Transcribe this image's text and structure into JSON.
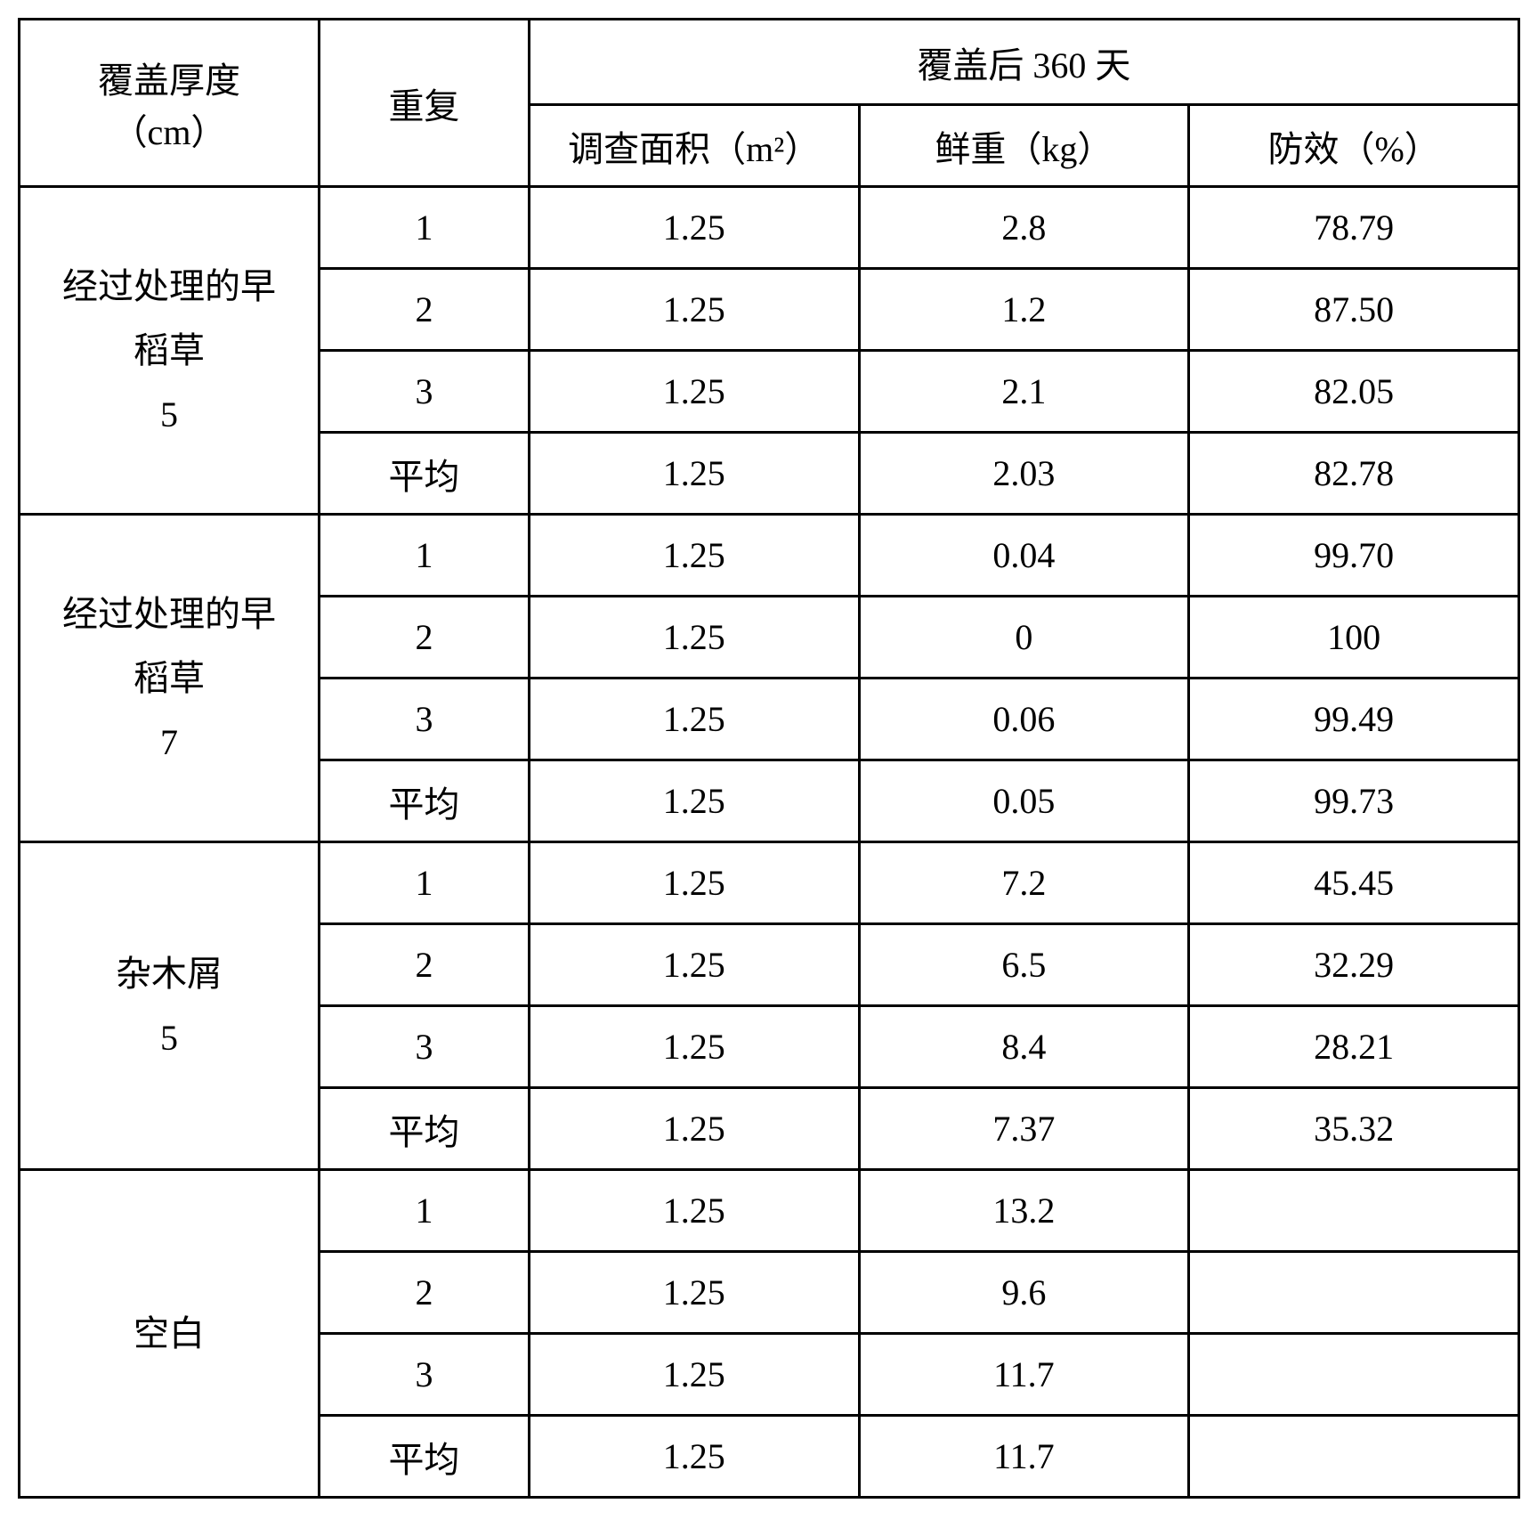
{
  "table": {
    "type": "table",
    "background_color": "#ffffff",
    "border_color": "#000000",
    "border_width": 3,
    "text_color": "#000000",
    "font_family": "SimSun",
    "font_size_pt": 30,
    "columns": {
      "thickness": {
        "line1": "覆盖厚度",
        "line2": "（cm）"
      },
      "repeat": "重复",
      "after_group": "覆盖后 360 天",
      "area": "调查面积（m²）",
      "weight": "鲜重（kg）",
      "effect": "防效（%）"
    },
    "groups": [
      {
        "label_lines": [
          "经过处理的早",
          "稻草",
          "5"
        ],
        "rows": [
          {
            "repeat": "1",
            "area": "1.25",
            "weight": "2.8",
            "effect": "78.79"
          },
          {
            "repeat": "2",
            "area": "1.25",
            "weight": "1.2",
            "effect": "87.50"
          },
          {
            "repeat": "3",
            "area": "1.25",
            "weight": "2.1",
            "effect": "82.05"
          },
          {
            "repeat": "平均",
            "area": "1.25",
            "weight": "2.03",
            "effect": "82.78"
          }
        ]
      },
      {
        "label_lines": [
          "经过处理的早",
          "稻草",
          "7"
        ],
        "rows": [
          {
            "repeat": "1",
            "area": "1.25",
            "weight": "0.04",
            "effect": "99.70"
          },
          {
            "repeat": "2",
            "area": "1.25",
            "weight": "0",
            "effect": "100"
          },
          {
            "repeat": "3",
            "area": "1.25",
            "weight": "0.06",
            "effect": "99.49"
          },
          {
            "repeat": "平均",
            "area": "1.25",
            "weight": "0.05",
            "effect": "99.73"
          }
        ]
      },
      {
        "label_lines": [
          "杂木屑",
          "5"
        ],
        "rows": [
          {
            "repeat": "1",
            "area": "1.25",
            "weight": "7.2",
            "effect": "45.45"
          },
          {
            "repeat": "2",
            "area": "1.25",
            "weight": "6.5",
            "effect": "32.29"
          },
          {
            "repeat": "3",
            "area": "1.25",
            "weight": "8.4",
            "effect": "28.21"
          },
          {
            "repeat": "平均",
            "area": "1.25",
            "weight": "7.37",
            "effect": "35.32"
          }
        ]
      },
      {
        "label_lines": [
          "空白"
        ],
        "rows": [
          {
            "repeat": "1",
            "area": "1.25",
            "weight": "13.2",
            "effect": ""
          },
          {
            "repeat": "2",
            "area": "1.25",
            "weight": "9.6",
            "effect": ""
          },
          {
            "repeat": "3",
            "area": "1.25",
            "weight": "11.7",
            "effect": ""
          },
          {
            "repeat": "平均",
            "area": "1.25",
            "weight": "11.7",
            "effect": ""
          }
        ]
      }
    ]
  }
}
